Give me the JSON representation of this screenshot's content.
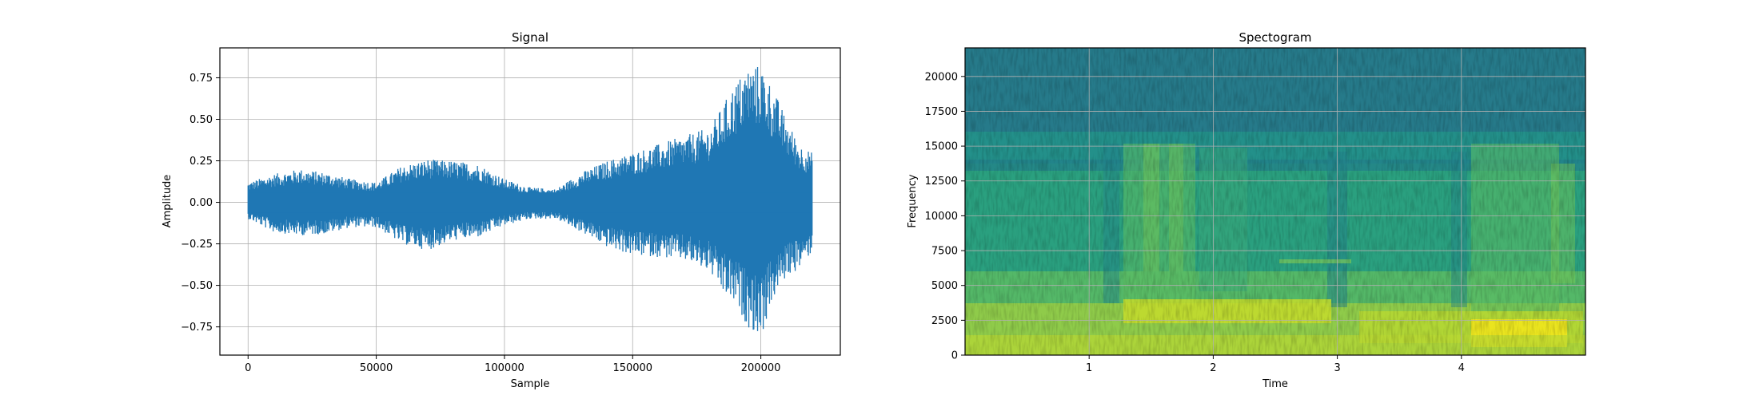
{
  "chart_data": [
    {
      "type": "line",
      "title": "Signal",
      "xlabel": "Sample",
      "ylabel": "Amplitude",
      "xlim": [
        -11000,
        231000
      ],
      "ylim": [
        -0.92,
        0.93
      ],
      "xticks": [
        0,
        50000,
        100000,
        150000,
        200000
      ],
      "xtick_labels": [
        "0",
        "50000",
        "100000",
        "150000",
        "200000"
      ],
      "yticks": [
        -0.75,
        -0.5,
        -0.25,
        0.0,
        0.25,
        0.5,
        0.75
      ],
      "ytick_labels": [
        "−0.75",
        "−0.50",
        "−0.25",
        "0.00",
        "0.25",
        "0.50",
        "0.75"
      ],
      "grid": true,
      "color": "#1f77b4",
      "series": [
        {
          "x": [
            0,
            10000,
            20000,
            30000,
            40000,
            50000,
            60000,
            70000,
            80000,
            90000,
            100000,
            110000,
            120000,
            130000,
            140000,
            150000,
            160000,
            170000,
            180000,
            185000,
            190000,
            195000,
            200000,
            205000,
            210000,
            215000,
            220000
          ],
          "max": [
            0.12,
            0.17,
            0.2,
            0.18,
            0.14,
            0.12,
            0.22,
            0.26,
            0.25,
            0.23,
            0.14,
            0.09,
            0.08,
            0.18,
            0.25,
            0.3,
            0.35,
            0.4,
            0.45,
            0.58,
            0.72,
            0.82,
            0.83,
            0.68,
            0.5,
            0.35,
            0.3
          ],
          "min": [
            -0.1,
            -0.18,
            -0.2,
            -0.19,
            -0.15,
            -0.15,
            -0.25,
            -0.29,
            -0.23,
            -0.21,
            -0.14,
            -0.1,
            -0.1,
            -0.18,
            -0.27,
            -0.32,
            -0.33,
            -0.35,
            -0.42,
            -0.55,
            -0.62,
            -0.75,
            -0.82,
            -0.58,
            -0.45,
            -0.4,
            -0.3
          ]
        }
      ]
    },
    {
      "type": "heatmap",
      "title": "Spectogram",
      "xlabel": "Time",
      "ylabel": "Frequency",
      "xlim": [
        0,
        5.0
      ],
      "ylim": [
        0,
        22050
      ],
      "xticks": [
        1,
        2,
        3,
        4
      ],
      "xtick_labels": [
        "1",
        "2",
        "3",
        "4"
      ],
      "yticks": [
        0,
        2500,
        5000,
        7500,
        10000,
        12500,
        15000,
        17500,
        20000
      ],
      "ytick_labels": [
        "0",
        "2500",
        "5000",
        "7500",
        "10000",
        "12500",
        "15000",
        "17500",
        "20000"
      ],
      "grid": true,
      "colormap": "viridis"
    }
  ]
}
